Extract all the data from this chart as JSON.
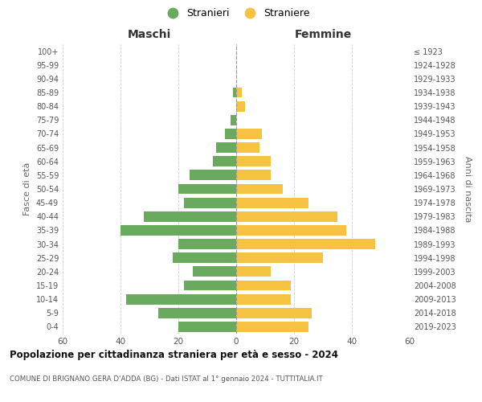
{
  "age_groups": [
    "0-4",
    "5-9",
    "10-14",
    "15-19",
    "20-24",
    "25-29",
    "30-34",
    "35-39",
    "40-44",
    "45-49",
    "50-54",
    "55-59",
    "60-64",
    "65-69",
    "70-74",
    "75-79",
    "80-84",
    "85-89",
    "90-94",
    "95-99",
    "100+"
  ],
  "birth_years": [
    "2019-2023",
    "2014-2018",
    "2009-2013",
    "2004-2008",
    "1999-2003",
    "1994-1998",
    "1989-1993",
    "1984-1988",
    "1979-1983",
    "1974-1978",
    "1969-1973",
    "1964-1968",
    "1959-1963",
    "1954-1958",
    "1949-1953",
    "1944-1948",
    "1939-1943",
    "1934-1938",
    "1929-1933",
    "1924-1928",
    "≤ 1923"
  ],
  "maschi": [
    20,
    27,
    38,
    18,
    15,
    22,
    20,
    40,
    32,
    18,
    20,
    16,
    8,
    7,
    4,
    2,
    0,
    1,
    0,
    0,
    0
  ],
  "femmine": [
    25,
    26,
    19,
    19,
    12,
    30,
    48,
    38,
    35,
    25,
    16,
    12,
    12,
    8,
    9,
    0,
    3,
    2,
    0,
    0,
    0
  ],
  "color_maschi": "#6aaa5e",
  "color_femmine": "#f5c242",
  "title": "Popolazione per cittadinanza straniera per età e sesso - 2024",
  "subtitle": "COMUNE DI BRIGNANO GERA D'ADDA (BG) - Dati ISTAT al 1° gennaio 2024 - TUTTITALIA.IT",
  "header_left": "Maschi",
  "header_right": "Femmine",
  "ylabel_left": "Fasce di età",
  "ylabel_right": "Anni di nascita",
  "legend_maschi": "Stranieri",
  "legend_femmine": "Straniere",
  "xlim": 60,
  "background_color": "#ffffff",
  "grid_color": "#cccccc"
}
